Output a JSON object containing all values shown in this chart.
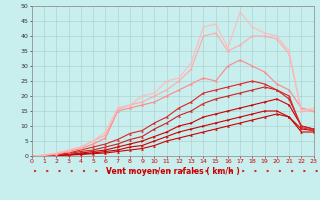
{
  "xlabel": "Vent moyen/en rafales ( km/h )",
  "xlim": [
    0,
    23
  ],
  "ylim": [
    0,
    50
  ],
  "xticks": [
    0,
    1,
    2,
    3,
    4,
    5,
    6,
    7,
    8,
    9,
    10,
    11,
    12,
    13,
    14,
    15,
    16,
    17,
    18,
    19,
    20,
    21,
    22,
    23
  ],
  "yticks": [
    0,
    5,
    10,
    15,
    20,
    25,
    30,
    35,
    40,
    45,
    50
  ],
  "bg_color": "#c8eeed",
  "grid_color": "#aacccc",
  "series": [
    {
      "x": [
        0,
        1,
        2,
        3,
        4,
        5,
        6,
        7,
        8,
        9,
        10,
        11,
        12,
        13,
        14,
        15,
        16,
        17,
        18,
        19,
        20,
        21,
        22,
        23
      ],
      "y": [
        0,
        0,
        0.2,
        0.3,
        0.5,
        0.8,
        1.0,
        1.5,
        2,
        2.5,
        3.5,
        5,
        6,
        7,
        8,
        9,
        10,
        11,
        12,
        13,
        14,
        13,
        8,
        8
      ],
      "color": "#cc0000",
      "lw": 0.8,
      "marker": "^",
      "ms": 1.5
    },
    {
      "x": [
        0,
        1,
        2,
        3,
        4,
        5,
        6,
        7,
        8,
        9,
        10,
        11,
        12,
        13,
        14,
        15,
        16,
        17,
        18,
        19,
        20,
        21,
        22,
        23
      ],
      "y": [
        0,
        0,
        0.2,
        0.4,
        0.7,
        1.0,
        1.5,
        2,
        3,
        3.5,
        5,
        6.5,
        8,
        9,
        10,
        11,
        12,
        13,
        14,
        15,
        15,
        13,
        9,
        8.5
      ],
      "color": "#cc0000",
      "lw": 0.8,
      "marker": ">",
      "ms": 1.5
    },
    {
      "x": [
        0,
        1,
        2,
        3,
        4,
        5,
        6,
        7,
        8,
        9,
        10,
        11,
        12,
        13,
        14,
        15,
        16,
        17,
        18,
        19,
        20,
        21,
        22,
        23
      ],
      "y": [
        0,
        0,
        0.3,
        0.5,
        1,
        1.5,
        2,
        3,
        4,
        5,
        6.5,
        8,
        10,
        11,
        13,
        14,
        15,
        16,
        17,
        18,
        19,
        17,
        10,
        9
      ],
      "color": "#cc0000",
      "lw": 0.8,
      "marker": ">",
      "ms": 1.5
    },
    {
      "x": [
        0,
        1,
        2,
        3,
        4,
        5,
        6,
        7,
        8,
        9,
        10,
        11,
        12,
        13,
        14,
        15,
        16,
        17,
        18,
        19,
        20,
        21,
        22,
        23
      ],
      "y": [
        0,
        0,
        0.4,
        0.8,
        1.5,
        2,
        3,
        4,
        5.5,
        6.5,
        9,
        11,
        13.5,
        15,
        17.5,
        19,
        20,
        21,
        22,
        23,
        22,
        19,
        10,
        9
      ],
      "color": "#cc2222",
      "lw": 0.8,
      "marker": "^",
      "ms": 1.5
    },
    {
      "x": [
        0,
        1,
        2,
        3,
        4,
        5,
        6,
        7,
        8,
        9,
        10,
        11,
        12,
        13,
        14,
        15,
        16,
        17,
        18,
        19,
        20,
        21,
        22,
        23
      ],
      "y": [
        0,
        0,
        0.5,
        1,
        2,
        3,
        4,
        5.5,
        7.5,
        8.5,
        11,
        13,
        16,
        18,
        21,
        22,
        23,
        24,
        25,
        24,
        22,
        20,
        9.5,
        8.5
      ],
      "color": "#dd2222",
      "lw": 0.8,
      "marker": "^",
      "ms": 1.5
    },
    {
      "x": [
        0,
        1,
        2,
        3,
        4,
        5,
        6,
        7,
        8,
        9,
        10,
        11,
        12,
        13,
        14,
        15,
        16,
        17,
        18,
        19,
        20,
        21,
        22,
        23
      ],
      "y": [
        0,
        0.2,
        0.5,
        1.5,
        2.5,
        4,
        6,
        15,
        16,
        17,
        18,
        20,
        22,
        24,
        26,
        25,
        30,
        32,
        30,
        28,
        24,
        22,
        16,
        15
      ],
      "color": "#ff8888",
      "lw": 0.8,
      "marker": "^",
      "ms": 1.5
    },
    {
      "x": [
        0,
        1,
        2,
        3,
        4,
        5,
        6,
        7,
        8,
        9,
        10,
        11,
        12,
        13,
        14,
        15,
        16,
        17,
        18,
        19,
        20,
        21,
        22,
        23
      ],
      "y": [
        0,
        0.3,
        0.8,
        2,
        3,
        5,
        7,
        15.5,
        17,
        18,
        20,
        22,
        25,
        29,
        40,
        41,
        35,
        37,
        40,
        40,
        39,
        34,
        15,
        15
      ],
      "color": "#ffaaaa",
      "lw": 0.8,
      "marker": "^",
      "ms": 1.5
    },
    {
      "x": [
        0,
        1,
        2,
        3,
        4,
        5,
        6,
        7,
        8,
        9,
        10,
        11,
        12,
        13,
        14,
        15,
        16,
        17,
        18,
        19,
        20,
        21,
        22,
        23
      ],
      "y": [
        0,
        0.3,
        1,
        2,
        3,
        5,
        8,
        16,
        17,
        20,
        21,
        25,
        26,
        31,
        43,
        44,
        36,
        48,
        43,
        41,
        40,
        35,
        15,
        16
      ],
      "color": "#ffbbbb",
      "lw": 0.8,
      "marker": "^",
      "ms": 1.5
    }
  ],
  "arrow_color": "#cc0000"
}
